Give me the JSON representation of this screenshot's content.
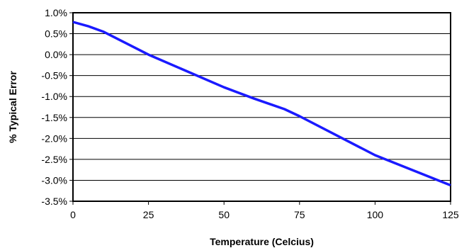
{
  "chart_data": {
    "type": "line",
    "title": "",
    "xlabel": "Temperature (Celcius)",
    "ylabel": "% Typical Error",
    "xlim": [
      0,
      125
    ],
    "ylim": [
      -3.5,
      1.0
    ],
    "x_ticks": [
      0,
      25,
      50,
      75,
      100,
      125
    ],
    "y_ticks": [
      1.0,
      0.5,
      0.0,
      -0.5,
      -1.0,
      -1.5,
      -2.0,
      -2.5,
      -3.0,
      -3.5
    ],
    "x_tick_labels": [
      "0",
      "25",
      "50",
      "75",
      "100",
      "125"
    ],
    "y_tick_labels": [
      "1.0%",
      "0.5%",
      "0.0%",
      "-0.5%",
      "-1.0%",
      "-1.5%",
      "-2.0%",
      "-2.5%",
      "-3.0%",
      "-3.5%"
    ],
    "grid": "horizontal",
    "legend": "none",
    "series": [
      {
        "color": "#1a1aff",
        "x": [
          0,
          5,
          10,
          25,
          50,
          60,
          70,
          75,
          100,
          125
        ],
        "y": [
          0.78,
          0.68,
          0.55,
          0.0,
          -0.78,
          -1.05,
          -1.3,
          -1.47,
          -2.4,
          -3.12
        ]
      }
    ]
  }
}
